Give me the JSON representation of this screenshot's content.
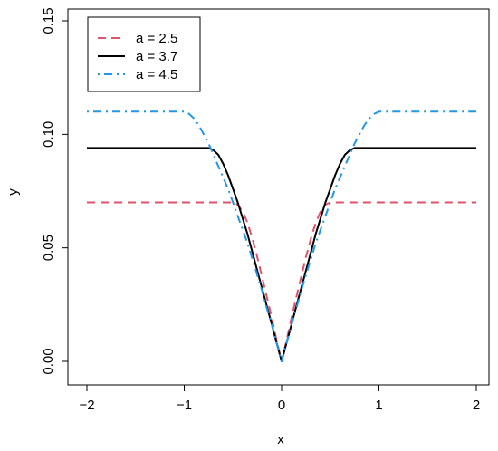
{
  "chart_data": {
    "type": "line",
    "xlabel": "x",
    "ylabel": "y",
    "xlim": [
      -2,
      2
    ],
    "ylim": [
      0,
      0.15
    ],
    "x_ticks": [
      -2,
      -1,
      0,
      1,
      2
    ],
    "x_tick_labels": [
      "−2",
      "−1",
      "0",
      "1",
      "2"
    ],
    "y_ticks": [
      0.0,
      0.05,
      0.1,
      0.15
    ],
    "y_tick_labels": [
      "0.00",
      "0.05",
      "0.10",
      "0.15"
    ],
    "grid": false,
    "legend_position": "top-left",
    "series": [
      {
        "name": "a = 2.5",
        "color": "#DF536B",
        "dash": "dashed",
        "x": [
          -2,
          -1.5,
          -1,
          -0.5,
          -0.45,
          -0.4,
          -0.35,
          -0.3,
          -0.25,
          -0.2,
          -0.15,
          -0.1,
          -0.05,
          0,
          0.05,
          0.1,
          0.15,
          0.2,
          0.25,
          0.3,
          0.35,
          0.4,
          0.45,
          0.5,
          1,
          1.5,
          2
        ],
        "y": [
          0.07,
          0.07,
          0.07,
          0.07,
          0.069,
          0.066,
          0.061,
          0.054,
          0.046,
          0.037,
          0.028,
          0.019,
          0.009,
          0.0,
          0.009,
          0.019,
          0.028,
          0.037,
          0.046,
          0.054,
          0.061,
          0.066,
          0.069,
          0.07,
          0.07,
          0.07,
          0.07
        ]
      },
      {
        "name": "a = 3.7",
        "color": "#000000",
        "dash": "solid",
        "x": [
          -2,
          -1.5,
          -1,
          -0.75,
          -0.7,
          -0.65,
          -0.6,
          -0.55,
          -0.5,
          -0.45,
          -0.4,
          -0.35,
          -0.3,
          -0.25,
          -0.2,
          -0.15,
          -0.1,
          -0.05,
          0,
          0.05,
          0.1,
          0.15,
          0.2,
          0.25,
          0.3,
          0.35,
          0.4,
          0.45,
          0.5,
          0.55,
          0.6,
          0.65,
          0.7,
          0.75,
          1,
          1.5,
          2
        ],
        "y": [
          0.094,
          0.094,
          0.094,
          0.094,
          0.093,
          0.091,
          0.087,
          0.082,
          0.076,
          0.07,
          0.063,
          0.056,
          0.048,
          0.04,
          0.032,
          0.024,
          0.016,
          0.008,
          0.0,
          0.008,
          0.016,
          0.024,
          0.032,
          0.04,
          0.048,
          0.056,
          0.063,
          0.07,
          0.076,
          0.082,
          0.087,
          0.091,
          0.093,
          0.094,
          0.094,
          0.094,
          0.094
        ]
      },
      {
        "name": "a = 4.5",
        "color": "#2297E6",
        "dash": "dotdash",
        "x": [
          -2,
          -1.5,
          -1,
          -0.95,
          -0.9,
          -0.85,
          -0.8,
          -0.75,
          -0.7,
          -0.65,
          -0.6,
          -0.55,
          -0.5,
          -0.45,
          -0.4,
          -0.35,
          -0.3,
          -0.25,
          -0.2,
          -0.15,
          -0.1,
          -0.05,
          0,
          0.05,
          0.1,
          0.15,
          0.2,
          0.25,
          0.3,
          0.35,
          0.4,
          0.45,
          0.5,
          0.55,
          0.6,
          0.65,
          0.7,
          0.75,
          0.8,
          0.85,
          0.9,
          0.95,
          1,
          1.5,
          2
        ],
        "y": [
          0.11,
          0.11,
          0.11,
          0.109,
          0.107,
          0.104,
          0.1,
          0.096,
          0.091,
          0.086,
          0.081,
          0.076,
          0.07,
          0.064,
          0.058,
          0.052,
          0.045,
          0.038,
          0.031,
          0.023,
          0.016,
          0.008,
          0.0,
          0.008,
          0.016,
          0.023,
          0.031,
          0.038,
          0.045,
          0.052,
          0.058,
          0.064,
          0.07,
          0.076,
          0.081,
          0.086,
          0.091,
          0.096,
          0.1,
          0.104,
          0.107,
          0.109,
          0.11,
          0.11,
          0.11
        ]
      }
    ]
  }
}
